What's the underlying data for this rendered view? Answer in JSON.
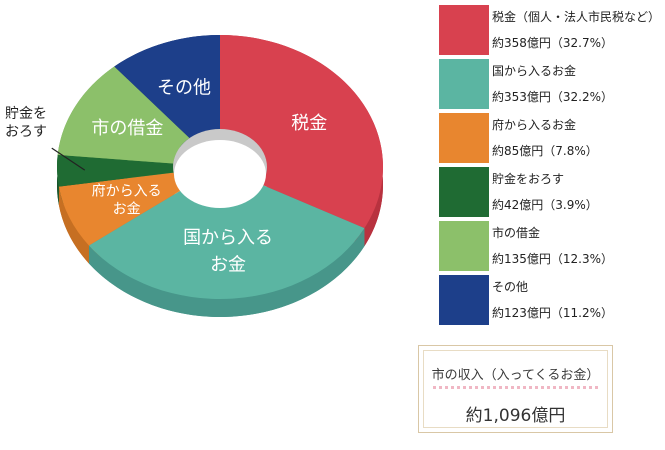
{
  "chart_data": {
    "type": "pie",
    "donut": true,
    "unit": "億円",
    "slices": [
      {
        "name": "税金",
        "legend_label": "税金（個人・法人市民税など）",
        "value": 358,
        "percent": 32.7,
        "value_text": "約358億円（32.7%）",
        "color": "#d8414f",
        "side_color": "#b8323f",
        "chart_label": [
          "税金"
        ]
      },
      {
        "name": "国から入るお金",
        "legend_label": "国から入るお金",
        "value": 353,
        "percent": 32.2,
        "value_text": "約353億円（32.2%）",
        "color": "#5bb5a2",
        "side_color": "#47968a",
        "chart_label": [
          "国から入る",
          "お金"
        ]
      },
      {
        "name": "府から入るお金",
        "legend_label": "府から入るお金",
        "value": 85,
        "percent": 7.8,
        "value_text": "約85億円（7.8%）",
        "color": "#e8862f",
        "side_color": "#c66f22",
        "chart_label": [
          "府から入る",
          "お金"
        ]
      },
      {
        "name": "貯金をおろす",
        "legend_label": "貯金をおろす",
        "value": 42,
        "percent": 3.9,
        "value_text": "約42億円（3.9%）",
        "color": "#1f6b33",
        "side_color": "#16542a",
        "chart_label": [
          "貯金を",
          "おろす"
        ]
      },
      {
        "name": "市の借金",
        "legend_label": "市の借金",
        "value": 135,
        "percent": 12.3,
        "value_text": "約135億円（12.3%）",
        "color": "#8cc06a",
        "side_color": "#6fa054",
        "chart_label": [
          "市の借金"
        ]
      },
      {
        "name": "その他",
        "legend_label": "その他",
        "value": 123,
        "percent": 11.2,
        "value_text": "約123億円（11.2%）",
        "color": "#1d3f8a",
        "side_color": "#162f6b",
        "chart_label": [
          "その他"
        ]
      }
    ]
  },
  "summary": {
    "title": "市の収入（入ってくるお金）",
    "total": "約1,096億円"
  }
}
